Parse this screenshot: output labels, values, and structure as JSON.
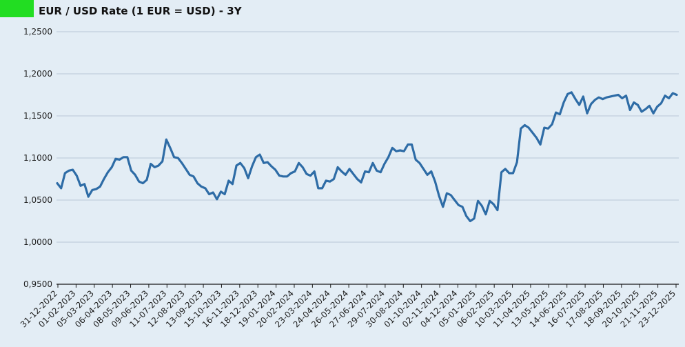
{
  "colors": {
    "background": "#e3edf5",
    "badge": "#22dd22",
    "line": "#2e6ca6",
    "grid": "#b8c8d6",
    "axis": "#1a1a1a"
  },
  "chart_data": {
    "type": "line",
    "title": "EUR / USD Rate (1 EUR = USD) - 3Y",
    "xlabel": "",
    "ylabel": "",
    "ylim": [
      0.95,
      1.25
    ],
    "grid": true,
    "y_ticks": [
      "0,9500",
      "1,0000",
      "1,0500",
      "1,1000",
      "1,1500",
      "1,2000",
      "1,2500"
    ],
    "x_ticks": [
      "31-12-2022",
      "01-02-2023",
      "05-03-2023",
      "06-04-2023",
      "08-05-2023",
      "09-06-2023",
      "11-07-2023",
      "12-08-2023",
      "13-09-2023",
      "15-10-2023",
      "16-11-2023",
      "18-12-2023",
      "19-01-2024",
      "20-02-2024",
      "23-03-2024",
      "24-04-2024",
      "26-05-2024",
      "27-06-2024",
      "29-07-2024",
      "30-08-2024",
      "01-10-2024",
      "02-11-2024",
      "04-12-2024",
      "05-01-2025",
      "06-02-2025",
      "10-03-2025",
      "11-04-2025",
      "13-05-2025",
      "14-06-2025",
      "16-07-2025",
      "17-08-2025",
      "18-09-2025",
      "20-10-2025",
      "21-11-2025",
      "23-12-2025"
    ],
    "series": [
      {
        "values": [
          1.07,
          1.064,
          1.082,
          1.085,
          1.086,
          1.079,
          1.067,
          1.069,
          1.054,
          1.062,
          1.063,
          1.066,
          1.075,
          1.083,
          1.089,
          1.099,
          1.098,
          1.101,
          1.101,
          1.085,
          1.08,
          1.072,
          1.07,
          1.074,
          1.093,
          1.089,
          1.091,
          1.096,
          1.122,
          1.112,
          1.101,
          1.1,
          1.094,
          1.087,
          1.08,
          1.078,
          1.07,
          1.066,
          1.064,
          1.057,
          1.059,
          1.051,
          1.06,
          1.057,
          1.073,
          1.069,
          1.091,
          1.094,
          1.088,
          1.076,
          1.09,
          1.101,
          1.104,
          1.094,
          1.095,
          1.09,
          1.086,
          1.079,
          1.078,
          1.078,
          1.082,
          1.084,
          1.094,
          1.089,
          1.081,
          1.079,
          1.084,
          1.064,
          1.064,
          1.073,
          1.072,
          1.075,
          1.089,
          1.084,
          1.08,
          1.087,
          1.081,
          1.075,
          1.071,
          1.084,
          1.083,
          1.094,
          1.085,
          1.083,
          1.093,
          1.101,
          1.112,
          1.108,
          1.109,
          1.108,
          1.116,
          1.116,
          1.098,
          1.094,
          1.087,
          1.08,
          1.084,
          1.072,
          1.055,
          1.042,
          1.058,
          1.056,
          1.05,
          1.044,
          1.042,
          1.031,
          1.025,
          1.028,
          1.049,
          1.043,
          1.033,
          1.049,
          1.045,
          1.038,
          1.083,
          1.087,
          1.082,
          1.082,
          1.095,
          1.135,
          1.139,
          1.136,
          1.13,
          1.124,
          1.116,
          1.136,
          1.135,
          1.14,
          1.154,
          1.152,
          1.166,
          1.176,
          1.178,
          1.17,
          1.163,
          1.173,
          1.153,
          1.164,
          1.169,
          1.172,
          1.17,
          1.172,
          1.173,
          1.174,
          1.175,
          1.171,
          1.174,
          1.157,
          1.166,
          1.163,
          1.155,
          1.158,
          1.162,
          1.153,
          1.161,
          1.165,
          1.174,
          1.171,
          1.177,
          1.175
        ]
      }
    ]
  }
}
